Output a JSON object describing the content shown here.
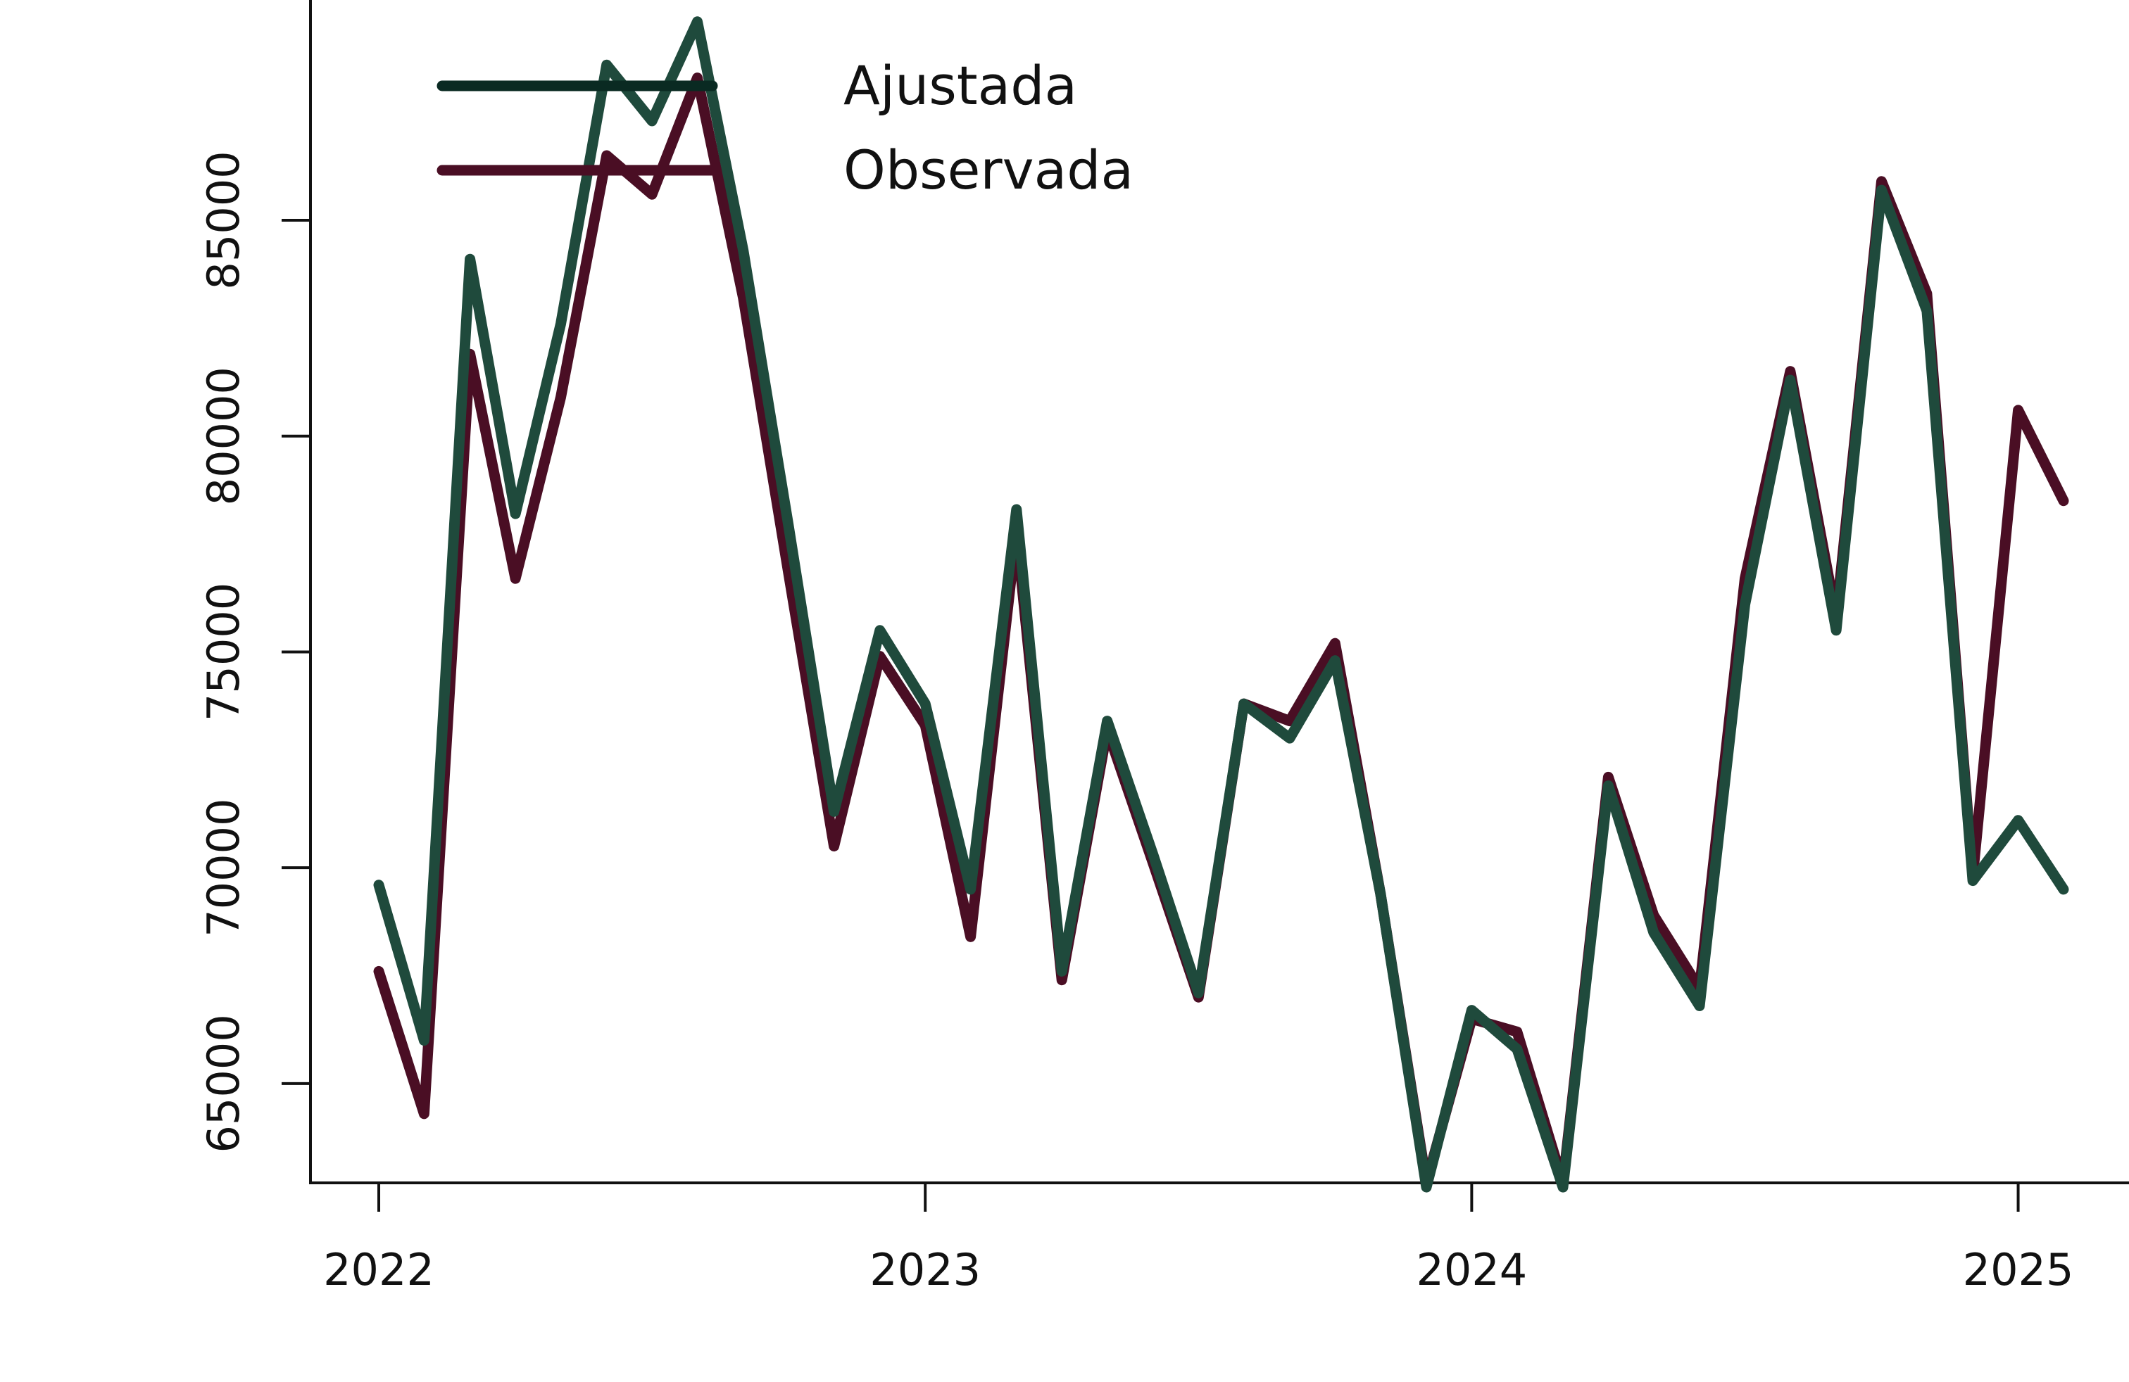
{
  "chart_data": {
    "type": "line",
    "title": "",
    "xlabel": "",
    "ylabel": "",
    "x_ticks": [
      2022,
      2023,
      2024,
      2025
    ],
    "y_ticks": [
      65000,
      70000,
      75000,
      80000,
      85000
    ],
    "xlim": [
      2021.875,
      2025.208
    ],
    "ylim": [
      62700,
      90200
    ],
    "grid": false,
    "legend_position": "top-left",
    "x": [
      2022.0,
      2022.083,
      2022.167,
      2022.25,
      2022.333,
      2022.417,
      2022.5,
      2022.583,
      2022.667,
      2022.75,
      2022.833,
      2022.917,
      2023.0,
      2023.083,
      2023.167,
      2023.25,
      2023.333,
      2023.417,
      2023.5,
      2023.583,
      2023.667,
      2023.75,
      2023.833,
      2023.917,
      2024.0,
      2024.083,
      2024.167,
      2024.25,
      2024.333,
      2024.417,
      2024.5,
      2024.583,
      2024.667,
      2024.75,
      2024.833,
      2024.917,
      2025.0,
      2025.083
    ],
    "series": [
      {
        "name": "Ajustada",
        "color": "#1f4a3c",
        "values": [
          69600,
          66000,
          84100,
          78200,
          82600,
          88600,
          87300,
          89600,
          84300,
          77900,
          71300,
          75500,
          73800,
          69500,
          78300,
          67600,
          73400,
          70300,
          67100,
          73800,
          73000,
          74800,
          69400,
          62600,
          66700,
          65800,
          62600,
          71900,
          68500,
          66800,
          76100,
          81300,
          75500,
          85700,
          82900,
          69700,
          71100,
          69500
        ]
      },
      {
        "name": "Observada",
        "color": "#4a0e24",
        "values": [
          67600,
          64300,
          81900,
          76700,
          80900,
          86500,
          85600,
          88300,
          83200,
          76800,
          70500,
          74900,
          73300,
          68400,
          77800,
          67400,
          73200,
          70100,
          67000,
          73800,
          73400,
          75200,
          69400,
          62700,
          66500,
          66200,
          62700,
          72100,
          68900,
          67200,
          76700,
          81500,
          75800,
          85900,
          83300,
          69800,
          80600,
          78500
        ]
      }
    ],
    "legend": {
      "entries": [
        "Ajustada",
        "Observada"
      ],
      "line_colors": [
        "#0a2a22",
        "#4a0e24"
      ]
    }
  }
}
